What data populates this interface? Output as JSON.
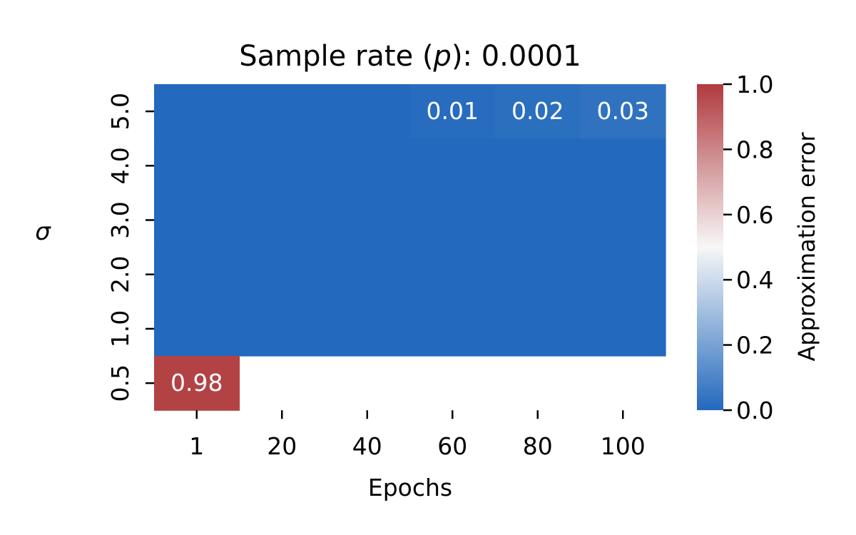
{
  "chart_data": {
    "type": "heatmap",
    "title_prefix": "Sample rate (",
    "title_var": "p",
    "title_suffix": "): 0.0001",
    "xlabel": "Epochs",
    "ylabel": "σ",
    "x_categories": [
      "1",
      "20",
      "40",
      "60",
      "80",
      "100"
    ],
    "y_categories": [
      "5.0",
      "4.0",
      "3.0",
      "2.0",
      "1.0",
      "0.5"
    ],
    "values": [
      [
        0.0,
        0.0,
        0.0,
        0.01,
        0.02,
        0.03
      ],
      [
        0.0,
        0.0,
        0.0,
        0.0,
        0.0,
        0.0
      ],
      [
        0.0,
        0.0,
        0.0,
        0.0,
        0.0,
        0.0
      ],
      [
        0.0,
        0.0,
        0.0,
        0.0,
        0.0,
        0.0
      ],
      [
        0.0,
        0.0,
        0.0,
        0.0,
        0.0,
        0.0
      ],
      [
        0.98,
        null,
        null,
        null,
        null,
        null
      ]
    ],
    "annotations": [
      {
        "row": 0,
        "col": 3,
        "text": "0.01"
      },
      {
        "row": 0,
        "col": 4,
        "text": "0.02"
      },
      {
        "row": 0,
        "col": 5,
        "text": "0.03"
      },
      {
        "row": 5,
        "col": 0,
        "text": "0.98"
      }
    ],
    "colorbar": {
      "label": "Approximation error",
      "range": [
        0.0,
        1.0
      ],
      "ticks": [
        "0.0",
        "0.2",
        "0.4",
        "0.6",
        "0.8",
        "1.0"
      ],
      "colormap": [
        "#2369bd",
        "#f7f7f7",
        "#b03a3e"
      ]
    }
  }
}
